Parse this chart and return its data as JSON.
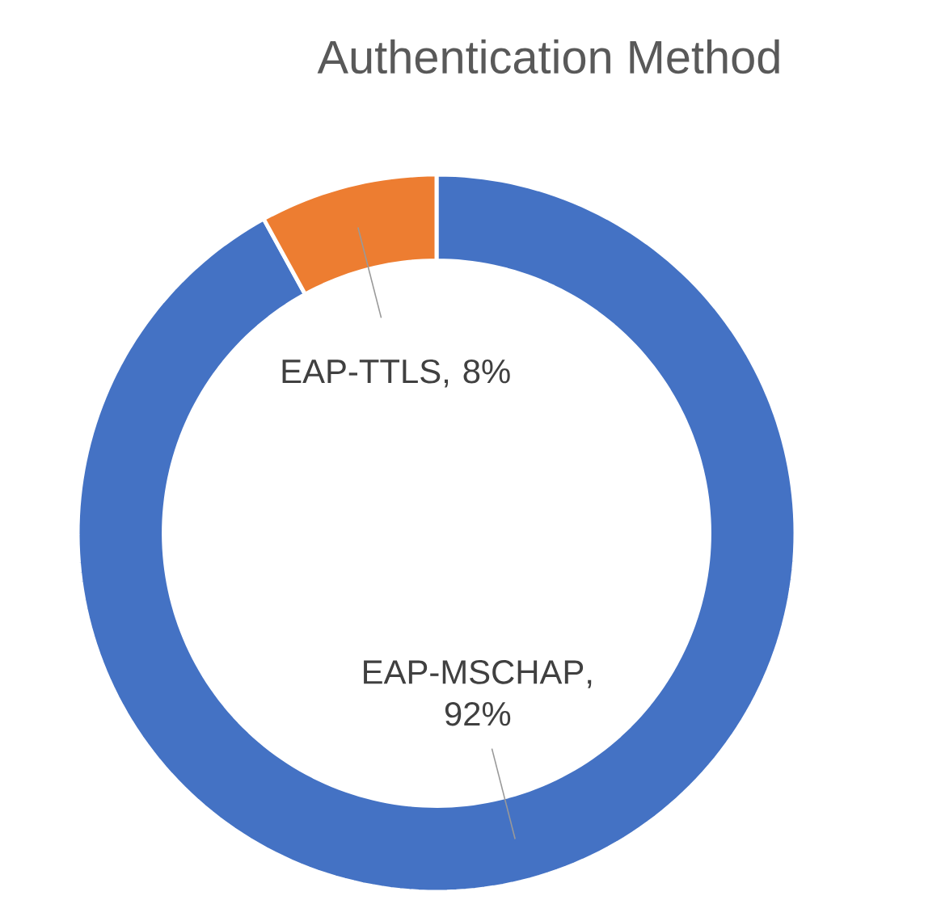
{
  "chart_data": {
    "type": "donut",
    "title": "Authentication Method",
    "categories": [
      "EAP-MSCHAP",
      "EAP-TTLS"
    ],
    "values": [
      92,
      8
    ],
    "colors": [
      "#4472c4",
      "#ed7d31"
    ],
    "value_labels": [
      ", 92%",
      ", 8%"
    ]
  }
}
